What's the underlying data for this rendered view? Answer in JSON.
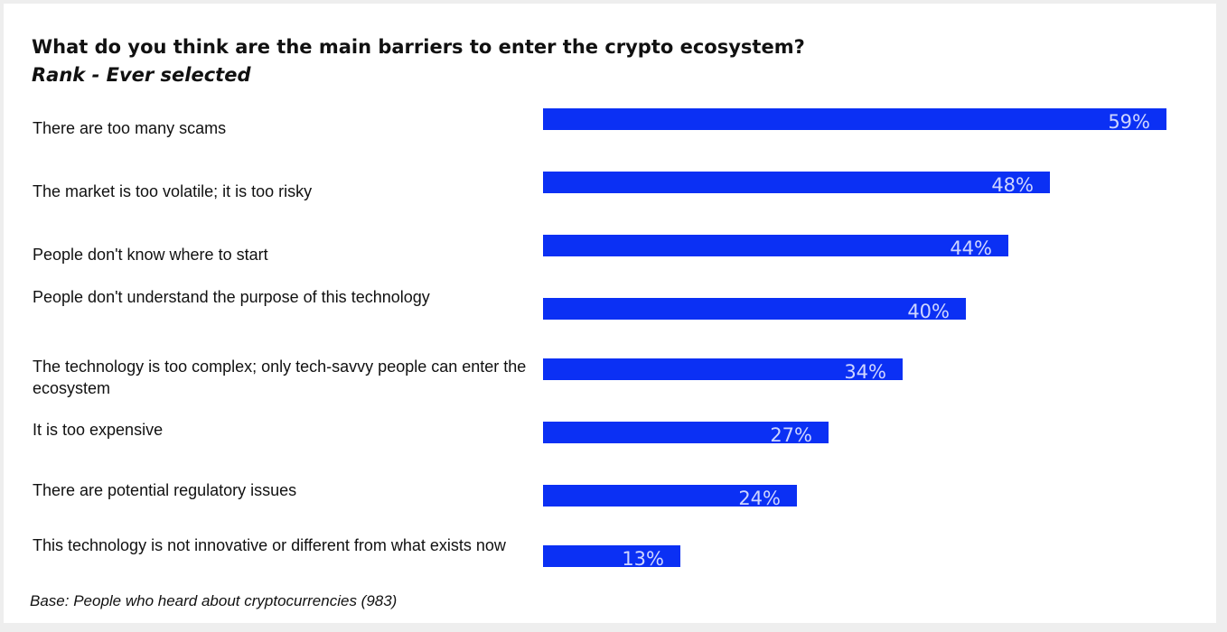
{
  "chart_data": {
    "type": "bar",
    "orientation": "horizontal",
    "title": "What do you think are the main barriers to enter the crypto ecosystem?",
    "subtitle": "Rank - Ever selected",
    "note": "Base: People who heard about cryptocurrencies (983)",
    "categories": [
      "There are too many scams",
      "The market is too volatile; it is too risky",
      "People don't know where to start",
      "People don't understand the purpose of this technology",
      "The technology is too complex; only tech-savvy people can enter the ecosystem",
      "It is too expensive",
      "There are potential regulatory issues",
      "This technology is not innovative or different from what exists now"
    ],
    "values": [
      59,
      48,
      44,
      40,
      34,
      27,
      24,
      13
    ],
    "value_labels": [
      "59%",
      "48%",
      "44%",
      "40%",
      "34%",
      "27%",
      "24%",
      "13%"
    ],
    "bar_color": "#0b30f4",
    "value_label_color": "#cfd6ff"
  }
}
